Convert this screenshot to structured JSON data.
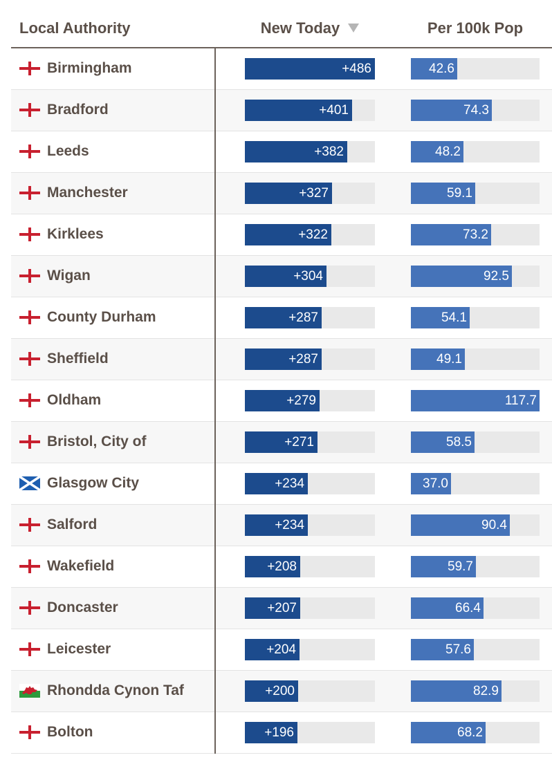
{
  "header": {
    "local_authority": "Local Authority",
    "new_today": "New Today",
    "per_100k": "Per 100k Pop"
  },
  "colors": {
    "new_today_bar": "#1c4b8d",
    "per_100k_bar": "#4573b9",
    "bar_track": "#e9e9e9",
    "text": "#5a4f48"
  },
  "chart_data": {
    "type": "table",
    "sort": {
      "column": "New Today",
      "order": "descending"
    },
    "columns": [
      "Local Authority",
      "New Today",
      "Per 100k Pop"
    ],
    "rows": [
      {
        "name": "Birmingham",
        "flag": "england-flag-icon",
        "new_today": 486,
        "new_label": "+486",
        "per_100k": 42.6,
        "per_label": "42.6"
      },
      {
        "name": "Bradford",
        "flag": "england-flag-icon",
        "new_today": 401,
        "new_label": "+401",
        "per_100k": 74.3,
        "per_label": "74.3"
      },
      {
        "name": "Leeds",
        "flag": "england-flag-icon",
        "new_today": 382,
        "new_label": "+382",
        "per_100k": 48.2,
        "per_label": "48.2"
      },
      {
        "name": "Manchester",
        "flag": "england-flag-icon",
        "new_today": 327,
        "new_label": "+327",
        "per_100k": 59.1,
        "per_label": "59.1"
      },
      {
        "name": "Kirklees",
        "flag": "england-flag-icon",
        "new_today": 322,
        "new_label": "+322",
        "per_100k": 73.2,
        "per_label": "73.2"
      },
      {
        "name": "Wigan",
        "flag": "england-flag-icon",
        "new_today": 304,
        "new_label": "+304",
        "per_100k": 92.5,
        "per_label": "92.5"
      },
      {
        "name": "County Durham",
        "flag": "england-flag-icon",
        "new_today": 287,
        "new_label": "+287",
        "per_100k": 54.1,
        "per_label": "54.1"
      },
      {
        "name": "Sheffield",
        "flag": "england-flag-icon",
        "new_today": 287,
        "new_label": "+287",
        "per_100k": 49.1,
        "per_label": "49.1"
      },
      {
        "name": "Oldham",
        "flag": "england-flag-icon",
        "new_today": 279,
        "new_label": "+279",
        "per_100k": 117.7,
        "per_label": "117.7"
      },
      {
        "name": "Bristol, City of",
        "flag": "england-flag-icon",
        "new_today": 271,
        "new_label": "+271",
        "per_100k": 58.5,
        "per_label": "58.5"
      },
      {
        "name": "Glasgow City",
        "flag": "scotland-flag-icon",
        "new_today": 234,
        "new_label": "+234",
        "per_100k": 37.0,
        "per_label": "37.0"
      },
      {
        "name": "Salford",
        "flag": "england-flag-icon",
        "new_today": 234,
        "new_label": "+234",
        "per_100k": 90.4,
        "per_label": "90.4"
      },
      {
        "name": "Wakefield",
        "flag": "england-flag-icon",
        "new_today": 208,
        "new_label": "+208",
        "per_100k": 59.7,
        "per_label": "59.7"
      },
      {
        "name": "Doncaster",
        "flag": "england-flag-icon",
        "new_today": 207,
        "new_label": "+207",
        "per_100k": 66.4,
        "per_label": "66.4"
      },
      {
        "name": "Leicester",
        "flag": "england-flag-icon",
        "new_today": 204,
        "new_label": "+204",
        "per_100k": 57.6,
        "per_label": "57.6"
      },
      {
        "name": "Rhondda Cynon Taf",
        "flag": "wales-flag-icon",
        "new_today": 200,
        "new_label": "+200",
        "per_100k": 82.9,
        "per_label": "82.9"
      },
      {
        "name": "Bolton",
        "flag": "england-flag-icon",
        "new_today": 196,
        "new_label": "+196",
        "per_100k": 68.2,
        "per_label": "68.2"
      }
    ],
    "new_today_max": 486,
    "per_100k_max": 117.7
  }
}
